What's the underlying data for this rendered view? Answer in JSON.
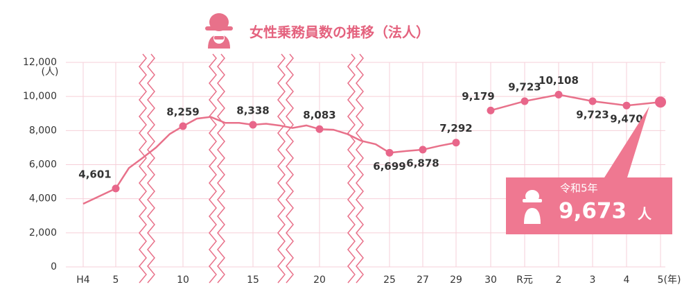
{
  "chart_data": {
    "type": "line",
    "title": "女性乗務員数の推移（法人）",
    "y_unit": "(人)",
    "x_unit": "(年)",
    "categories": [
      "H4",
      "5",
      null,
      null,
      null,
      null,
      "10",
      null,
      null,
      null,
      null,
      "15",
      null,
      null,
      null,
      null,
      "20",
      null,
      null,
      null,
      null,
      "25",
      null,
      "27",
      null,
      "29",
      "30",
      "R元",
      "2",
      "3",
      "4",
      "5"
    ],
    "series": [
      {
        "color": "#e8718a",
        "values": [
          3700,
          4601,
          5800,
          6400,
          7000,
          7800,
          8259,
          8700,
          8800,
          8450,
          8450,
          8338,
          8400,
          8300,
          8150,
          8300,
          8083,
          8050,
          7800,
          7400,
          7200,
          6699,
          6800,
          6878,
          7100,
          7292,
          9179,
          9723,
          10108,
          9723,
          9470,
          9673
        ],
        "value_labels": [
          null,
          "4,601",
          null,
          null,
          null,
          null,
          "8,259",
          null,
          null,
          null,
          null,
          "8,338",
          null,
          null,
          null,
          null,
          "8,083",
          null,
          null,
          null,
          null,
          "6,699",
          null,
          "6,878",
          null,
          "7,292",
          "9,179",
          "9,723",
          "10,108",
          "9,723",
          "9,470",
          "9,673"
        ]
      }
    ],
    "callout": {
      "title": "令和5年",
      "unit": "人"
    },
    "ylim": [
      0,
      12000
    ],
    "yticks": [
      0,
      {
        "value": 2000,
        "label": "2,000"
      },
      {
        "value": 4000,
        "label": "4,000"
      },
      {
        "value": 6000,
        "label": "6,000"
      },
      {
        "value": 8000,
        "label": "8,000"
      },
      {
        "value": 10000,
        "label": "10,000"
      },
      {
        "value": 12000,
        "label": "12,000"
      }
    ],
    "grid": true
  }
}
